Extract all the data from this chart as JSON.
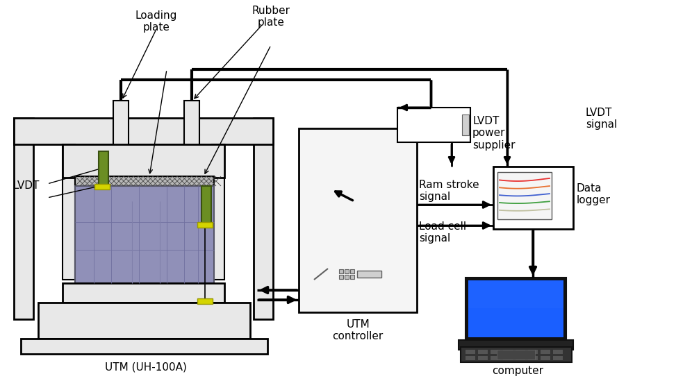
{
  "bg_color": "#ffffff",
  "labels": {
    "loading_plate": "Loading\nplate",
    "rubber_plate": "Rubber\nplate",
    "lvdt": "LVDT",
    "lvdt_power": "LVDT\npower\nsupplier",
    "lvdt_signal": "LVDT\nsignal",
    "ram_stroke": "Ram stroke\nsignal",
    "load_cell": "Load cell\nsignal",
    "data_logger": "Data\nlogger",
    "utm_controller": "UTM\ncontroller",
    "utm": "UTM (UH-100A)",
    "computer": "computer"
  },
  "colors": {
    "black": "#000000",
    "white": "#ffffff",
    "gray_light": "#e8e8e8",
    "green": "#6b8e23",
    "yellow": "#d4d400",
    "lavender": "#9090b0",
    "blue_screen": "#1a5fff"
  }
}
